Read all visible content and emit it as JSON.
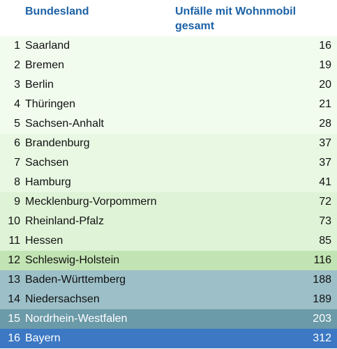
{
  "chart_data": {
    "type": "table",
    "columns": [
      "Bundesland",
      "Unfälle mit Wohnmobil gesamt"
    ],
    "rows": [
      {
        "rank": "1",
        "name": "Saarland",
        "value": 16,
        "color": "#f1fcee",
        "text_color": "#111111"
      },
      {
        "rank": "2",
        "name": "Bremen",
        "value": 19,
        "color": "#f1fcee",
        "text_color": "#111111"
      },
      {
        "rank": "3",
        "name": "Berlin",
        "value": 20,
        "color": "#f1fcee",
        "text_color": "#111111"
      },
      {
        "rank": "4",
        "name": "Thüringen",
        "value": 21,
        "color": "#f1fcee",
        "text_color": "#111111"
      },
      {
        "rank": "5",
        "name": "Sachsen-Anhalt",
        "value": 28,
        "color": "#f1fcee",
        "text_color": "#111111"
      },
      {
        "rank": "6",
        "name": "Brandenburg",
        "value": 37,
        "color": "#e8f8e3",
        "text_color": "#111111"
      },
      {
        "rank": "7",
        "name": "Sachsen",
        "value": 37,
        "color": "#e8f8e3",
        "text_color": "#111111"
      },
      {
        "rank": "8",
        "name": "Hamburg",
        "value": 41,
        "color": "#e8f8e3",
        "text_color": "#111111"
      },
      {
        "rank": "9",
        "name": "Mecklenburg-Vorpommern",
        "value": 72,
        "color": "#dff3d7",
        "text_color": "#111111"
      },
      {
        "rank": "10",
        "name": "Rheinland-Pfalz",
        "value": 73,
        "color": "#dff3d7",
        "text_color": "#111111"
      },
      {
        "rank": "11",
        "name": "Hessen",
        "value": 85,
        "color": "#dff3d7",
        "text_color": "#111111"
      },
      {
        "rank": "12",
        "name": "Schleswig-Holstein",
        "value": 116,
        "color": "#c2e3b3",
        "text_color": "#111111"
      },
      {
        "rank": "13",
        "name": "Baden-Württemberg",
        "value": 188,
        "color": "#9cbfc8",
        "text_color": "#111111"
      },
      {
        "rank": "14",
        "name": "Niedersachsen",
        "value": 189,
        "color": "#9cbfc8",
        "text_color": "#111111"
      },
      {
        "rank": "15",
        "name": "Nordrhein-Westfalen",
        "value": 203,
        "color": "#6b9aa8",
        "text_color": "#ffffff"
      },
      {
        "rank": "16",
        "name": "Bayern",
        "value": 312,
        "color": "#3c78c4",
        "text_color": "#ffffff"
      }
    ]
  }
}
